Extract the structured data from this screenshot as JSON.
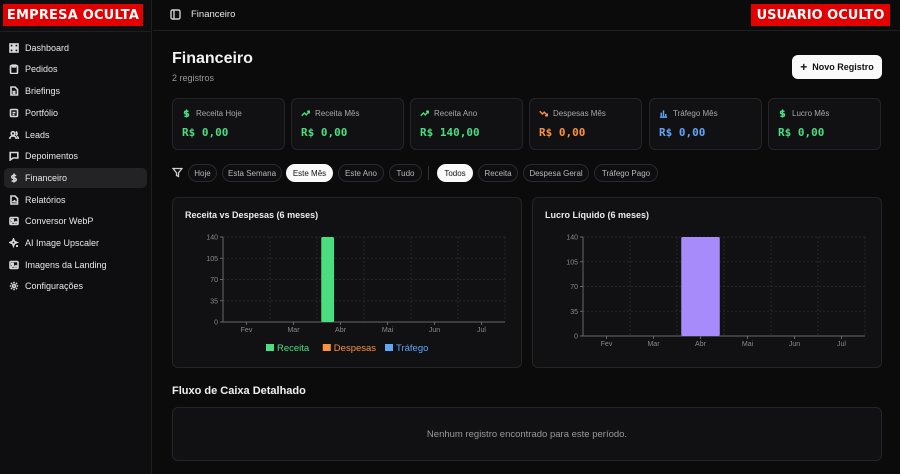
{
  "brand": "EMPRESA OCULTA",
  "user": "USUARIO OCULTO",
  "breadcrumb": "Financeiro",
  "sidebar": {
    "items": [
      {
        "label": "Dashboard",
        "icon": "dashboard-icon"
      },
      {
        "label": "Pedidos",
        "icon": "clipboard-icon"
      },
      {
        "label": "Briefings",
        "icon": "file-icon"
      },
      {
        "label": "Portfólio",
        "icon": "folder-icon"
      },
      {
        "label": "Leads",
        "icon": "users-icon"
      },
      {
        "label": "Depoimentos",
        "icon": "message-icon"
      },
      {
        "label": "Financeiro",
        "icon": "dollar-icon",
        "active": true
      },
      {
        "label": "Relatórios",
        "icon": "report-icon"
      },
      {
        "label": "Conversor WebP",
        "icon": "image-icon"
      },
      {
        "label": "AI Image Upscaler",
        "icon": "sparkles-icon"
      },
      {
        "label": "Imagens da Landing",
        "icon": "image-icon"
      },
      {
        "label": "Configurações",
        "icon": "gear-icon"
      }
    ]
  },
  "page": {
    "title": "Financeiro",
    "subtitle": "2 registros",
    "new_button": "Novo Registro"
  },
  "stats": [
    {
      "label": "Receita Hoje",
      "value": "R$ 0,00",
      "color": "#4ade80",
      "icon": "dollar-icon"
    },
    {
      "label": "Receita Mês",
      "value": "R$ 0,00",
      "color": "#4ade80",
      "icon": "trending-up-icon"
    },
    {
      "label": "Receita Ano",
      "value": "R$ 140,00",
      "color": "#4ade80",
      "icon": "trending-up-icon"
    },
    {
      "label": "Despesas Mês",
      "value": "R$ 0,00",
      "color": "#fb923c",
      "icon": "trending-down-icon"
    },
    {
      "label": "Tráfego Mês",
      "value": "R$ 0,00",
      "color": "#60a5fa",
      "icon": "bar-chart-icon"
    },
    {
      "label": "Lucro Mês",
      "value": "R$ 0,00",
      "color": "#4ade80",
      "icon": "dollar-icon"
    }
  ],
  "filters": {
    "period": [
      {
        "label": "Hoje",
        "active": false
      },
      {
        "label": "Esta Semana",
        "active": false
      },
      {
        "label": "Este Mês",
        "active": true
      },
      {
        "label": "Este Ano",
        "active": false
      },
      {
        "label": "Tudo",
        "active": false
      }
    ],
    "type": [
      {
        "label": "Todos",
        "active": true
      },
      {
        "label": "Receita",
        "active": false
      },
      {
        "label": "Despesa Geral",
        "active": false
      },
      {
        "label": "Tráfego Pago",
        "active": false
      }
    ]
  },
  "chart_data": [
    {
      "type": "bar",
      "title": "Receita vs Despesas (6 meses)",
      "categories": [
        "Fev",
        "Mar",
        "Abr",
        "Mai",
        "Jun",
        "Jul"
      ],
      "series": [
        {
          "name": "Receita",
          "values": [
            0,
            0,
            140,
            0,
            0,
            0
          ],
          "color": "#4ade80"
        },
        {
          "name": "Despesas",
          "values": [
            0,
            0,
            0,
            0,
            0,
            0
          ],
          "color": "#fb923c"
        },
        {
          "name": "Tráfego",
          "values": [
            0,
            0,
            0,
            0,
            0,
            0
          ],
          "color": "#60a5fa"
        }
      ],
      "yticks": [
        "0",
        "35",
        "70",
        "105",
        "140"
      ],
      "ylim": [
        0,
        140
      ],
      "grid": true,
      "legend": "bottom"
    },
    {
      "type": "bar",
      "title": "Lucro Líquido (6 meses)",
      "categories": [
        "Fev",
        "Mar",
        "Abr",
        "Mai",
        "Jun",
        "Jul"
      ],
      "series": [
        {
          "values": [
            0,
            0,
            140,
            0,
            0,
            0
          ],
          "color": "#a78bfa"
        }
      ],
      "yticks": [
        "0",
        "35",
        "70",
        "105",
        "140"
      ],
      "ylim": [
        0,
        140
      ],
      "grid": true,
      "legend": "none"
    }
  ],
  "cashflow": {
    "title": "Fluxo de Caixa Detalhado",
    "empty": "Nenhum registro encontrado para este período."
  }
}
